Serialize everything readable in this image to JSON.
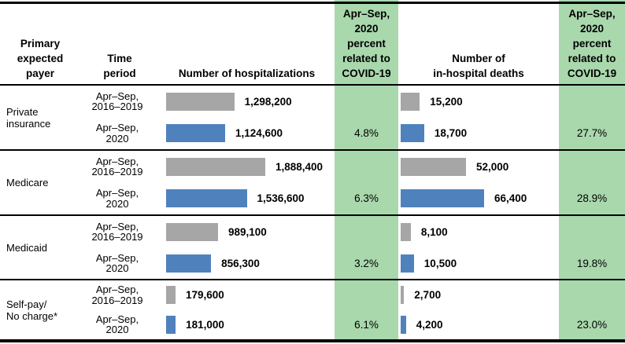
{
  "colors": {
    "baseline_bar": "#A6A6A6",
    "covid_bar": "#4F82BD",
    "covid_highlight": "#A9D8AC",
    "rule_lines": "#000000"
  },
  "table": {
    "headers": {
      "payer": "Primary\nexpected\npayer",
      "time_period": "Time\nperiod",
      "hospitalizations": "Number of hospitalizations",
      "covid_pct_hosp": "Apr–Sep,\n2020\npercent\nrelated to\nCOVID-19",
      "deaths": "Number of\nin-hospital deaths",
      "covid_pct_deaths": "Apr–Sep,\n2020\npercent\nrelated to\nCOVID-19"
    },
    "rows": [
      {
        "payer": "Private\ninsurance",
        "periods": [
          {
            "label": "Apr–Sep,\n2016–2019",
            "hospitalizations": 1298200,
            "hospitalizations_label": "1,298,200",
            "deaths": 15200,
            "deaths_label": "15,200"
          },
          {
            "label": "Apr–Sep,\n2020",
            "hospitalizations": 1124600,
            "hospitalizations_label": "1,124,600",
            "deaths": 18700,
            "deaths_label": "18,700"
          }
        ],
        "covid_percent_hospitalizations": "4.8%",
        "covid_percent_deaths": "27.7%"
      },
      {
        "payer": "Medicare",
        "periods": [
          {
            "label": "Apr–Sep,\n2016–2019",
            "hospitalizations": 1888400,
            "hospitalizations_label": "1,888,400",
            "deaths": 52000,
            "deaths_label": "52,000"
          },
          {
            "label": "Apr–Sep,\n2020",
            "hospitalizations": 1536600,
            "hospitalizations_label": "1,536,600",
            "deaths": 66400,
            "deaths_label": "66,400"
          }
        ],
        "covid_percent_hospitalizations": "6.3%",
        "covid_percent_deaths": "28.9%"
      },
      {
        "payer": "Medicaid",
        "periods": [
          {
            "label": "Apr–Sep,\n2016–2019",
            "hospitalizations": 989100,
            "hospitalizations_label": "989,100",
            "deaths": 8100,
            "deaths_label": "8,100"
          },
          {
            "label": "Apr–Sep,\n2020",
            "hospitalizations": 856300,
            "hospitalizations_label": "856,300",
            "deaths": 10500,
            "deaths_label": "10,500"
          }
        ],
        "covid_percent_hospitalizations": "3.2%",
        "covid_percent_deaths": "19.8%"
      },
      {
        "payer": "Self-pay/\nNo charge*",
        "periods": [
          {
            "label": "Apr–Sep,\n2016–2019",
            "hospitalizations": 179600,
            "hospitalizations_label": "179,600",
            "deaths": 2700,
            "deaths_label": "2,700"
          },
          {
            "label": "Apr–Sep,\n2020",
            "hospitalizations": 181000,
            "hospitalizations_label": "181,000",
            "deaths": 4200,
            "deaths_label": "4,200"
          }
        ],
        "covid_percent_hospitalizations": "6.1%",
        "covid_percent_deaths": "23.0%"
      }
    ]
  },
  "chart_data": {
    "type": "bar",
    "orientation": "horizontal",
    "categories": [
      "Private insurance",
      "Medicare",
      "Medicaid",
      "Self-pay/No charge*"
    ],
    "series": [
      {
        "name": "Number of hospitalizations, Apr–Sep 2016–2019",
        "color": "#A6A6A6",
        "values": [
          1298200,
          1888400,
          989100,
          179600
        ]
      },
      {
        "name": "Number of hospitalizations, Apr–Sep 2020",
        "color": "#4F82BD",
        "values": [
          1124600,
          1536600,
          856300,
          181000
        ]
      },
      {
        "name": "Number of in-hospital deaths, Apr–Sep 2016–2019",
        "color": "#A6A6A6",
        "values": [
          15200,
          52000,
          8100,
          2700
        ]
      },
      {
        "name": "Number of in-hospital deaths, Apr–Sep 2020",
        "color": "#4F82BD",
        "values": [
          18700,
          66400,
          10500,
          4200
        ]
      },
      {
        "name": "Apr–Sep 2020 percent related to COVID-19 (hospitalizations)",
        "values_pct": [
          4.8,
          6.3,
          3.2,
          6.1
        ]
      },
      {
        "name": "Apr–Sep 2020 percent related to COVID-19 (in-hospital deaths)",
        "values_pct": [
          27.7,
          28.9,
          19.8,
          23.0
        ]
      }
    ],
    "title": "",
    "xlabel": "",
    "ylabel": "",
    "legend_position": "none",
    "grid": false,
    "data_labels": true
  }
}
